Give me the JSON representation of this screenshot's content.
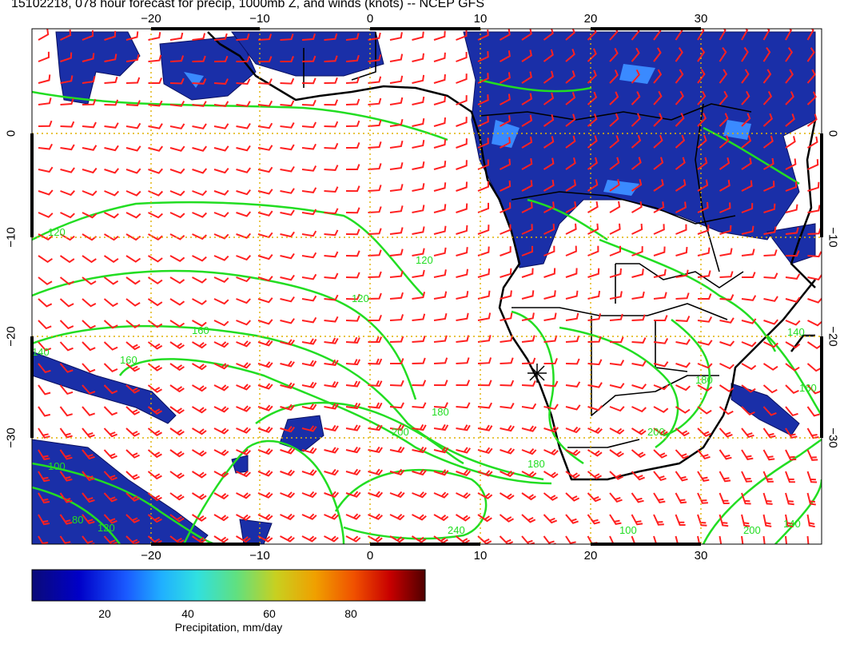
{
  "title": "15102218, 078 hour forecast for precip, 1000mb Z, and winds (knots) -- NCEP GFS",
  "map": {
    "lon_ticks": [
      "−20",
      "−10",
      "0",
      "10",
      "20",
      "30"
    ],
    "lat_ticks": [
      "0",
      "−10",
      "−20",
      "−30"
    ],
    "grid_color": "#e0b000",
    "height_contour_color": "#22dd22",
    "coastline_color": "#000000",
    "wind_barb_color": "#ff2020",
    "contour_labels": [
      "120",
      "120",
      "120",
      "140",
      "140",
      "160",
      "160",
      "160",
      "180",
      "180",
      "200",
      "200",
      "200",
      "240",
      "100",
      "80",
      "100",
      "180",
      "120",
      "140"
    ]
  },
  "colorbar": {
    "labels": [
      "20",
      "40",
      "60",
      "80"
    ],
    "title": "Precipitation, mm/day",
    "colors": [
      "#0a0a78",
      "#0000c8",
      "#1a5aff",
      "#20b0ff",
      "#30e0e0",
      "#60e080",
      "#c8d020",
      "#f0a000",
      "#f05000",
      "#c80000",
      "#500000"
    ]
  }
}
